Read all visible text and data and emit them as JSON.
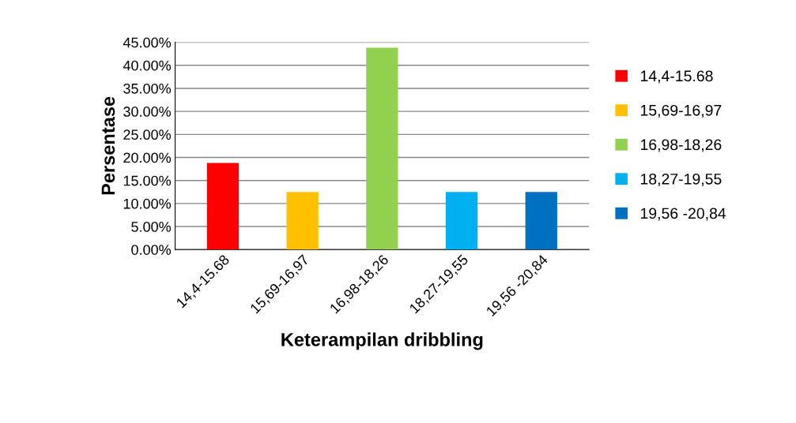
{
  "chart_data": {
    "type": "bar",
    "xlabel": "Keterampilan dribbling",
    "ylabel": "Persentase",
    "categories": [
      "14,4-15.68",
      "15,69-16,97",
      "16,98-18,26",
      "18,27-19,55",
      "19,56 -20,84"
    ],
    "series": [
      {
        "name": "14,4-15.68",
        "color": "#ff0000",
        "values": [
          18.8,
          null,
          null,
          null,
          null
        ]
      },
      {
        "name": "15,69-16,97",
        "color": "#ffc000",
        "values": [
          null,
          12.5,
          null,
          null,
          null
        ]
      },
      {
        "name": "16,98-18,26",
        "color": "#92d050",
        "values": [
          null,
          null,
          43.8,
          null,
          null
        ]
      },
      {
        "name": "18,27-19,55",
        "color": "#00b0f0",
        "values": [
          null,
          null,
          null,
          12.5,
          null
        ]
      },
      {
        "name": "19,56 -20,84",
        "color": "#0070c0",
        "values": [
          null,
          null,
          null,
          null,
          12.5
        ]
      }
    ],
    "ylim": [
      0,
      45
    ],
    "yticks": [
      {
        "value": 0,
        "label": "0.00%"
      },
      {
        "value": 5,
        "label": "5.00%"
      },
      {
        "value": 10,
        "label": "10.00%"
      },
      {
        "value": 15,
        "label": "15.00%"
      },
      {
        "value": 20,
        "label": "20.00%"
      },
      {
        "value": 25,
        "label": "25.00%"
      },
      {
        "value": 30,
        "label": "30.00%"
      },
      {
        "value": 35,
        "label": "35.00%"
      },
      {
        "value": 40,
        "label": "40.00%"
      },
      {
        "value": 45,
        "label": "45.00%"
      }
    ],
    "grid": "y",
    "legend": "right"
  }
}
